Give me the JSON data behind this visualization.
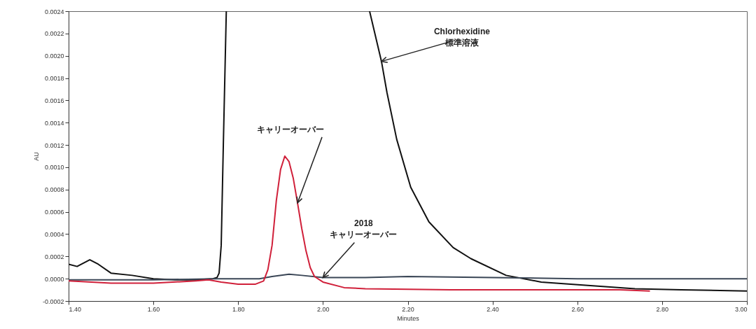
{
  "chart_data": {
    "type": "line",
    "xlabel": "Minutes",
    "ylabel": "AU",
    "xlim": [
      1.4,
      3.0
    ],
    "ylim": [
      -0.0002,
      0.0024
    ],
    "xticks": [
      {
        "value": 1.4,
        "label": "1.40"
      },
      {
        "value": 1.6,
        "label": "1.60"
      },
      {
        "value": 1.8,
        "label": "1.80"
      },
      {
        "value": 2.0,
        "label": "2.00"
      },
      {
        "value": 2.2,
        "label": "2.20"
      },
      {
        "value": 2.4,
        "label": "2.40"
      },
      {
        "value": 2.6,
        "label": "2.60"
      },
      {
        "value": 2.8,
        "label": "2.80"
      },
      {
        "value": 3.0,
        "label": "3.00"
      }
    ],
    "yticks": [
      {
        "value": -0.0002,
        "label": "-0.0002"
      },
      {
        "value": 0,
        "label": "0.0000"
      },
      {
        "value": 0.0002,
        "label": "0.0002"
      },
      {
        "value": 0.0004,
        "label": "0.0004"
      },
      {
        "value": 0.0006,
        "label": "0.0006"
      },
      {
        "value": 0.0008,
        "label": "0.0008"
      },
      {
        "value": 0.001,
        "label": "0.0010"
      },
      {
        "value": 0.0012,
        "label": "0.0012"
      },
      {
        "value": 0.0014,
        "label": "0.0014"
      },
      {
        "value": 0.0016,
        "label": "0.0016"
      },
      {
        "value": 0.0018,
        "label": "0.0018"
      },
      {
        "value": 0.002,
        "label": "0.0020"
      },
      {
        "value": 0.0022,
        "label": "0.0022"
      },
      {
        "value": 0.0024,
        "label": "0.0024"
      }
    ],
    "grid": false,
    "marker": "none",
    "line_style": "solid",
    "series": [
      {
        "color": "#111111",
        "x": [
          1.4,
          1.42,
          1.45,
          1.47,
          1.5,
          1.55,
          1.6,
          1.65,
          1.7,
          1.74,
          1.75,
          1.755,
          1.76,
          1.765,
          1.772,
          1.9,
          2.11,
          2.138,
          2.151,
          2.174,
          2.207,
          2.25,
          2.307,
          2.349,
          2.432,
          2.515,
          2.625,
          2.736,
          2.845,
          3.0
        ],
        "values": [
          0.00013,
          0.00011,
          0.00017,
          0.00013,
          5e-05,
          3e-05,
          0.0,
          -1e-05,
          -1e-05,
          0.0,
          1e-05,
          5e-05,
          0.0003,
          0.0012,
          0.0024,
          null,
          0.0024,
          0.00195,
          0.00167,
          0.00125,
          0.00082,
          0.00051,
          0.00028,
          0.00018,
          3e-05,
          -3e-05,
          -6e-05,
          -9e-05,
          -0.0001,
          -0.00011
        ]
      },
      {
        "color": "#3a4656",
        "x": [
          1.4,
          1.6,
          1.75,
          1.85,
          1.88,
          1.92,
          1.95,
          2.0,
          2.1,
          2.2,
          2.4,
          2.6,
          2.8,
          3.0
        ],
        "values": [
          -1e-05,
          -1e-05,
          0.0,
          0.0,
          2e-05,
          4e-05,
          3e-05,
          1e-05,
          1e-05,
          2e-05,
          1e-05,
          0.0,
          0.0,
          0.0
        ]
      },
      {
        "color": "#d0203a",
        "x": [
          1.4,
          1.5,
          1.6,
          1.7,
          1.73,
          1.76,
          1.8,
          1.84,
          1.86,
          1.87,
          1.88,
          1.89,
          1.9,
          1.91,
          1.92,
          1.93,
          1.94,
          1.95,
          1.96,
          1.97,
          1.98,
          2.0,
          2.05,
          2.1,
          2.3,
          2.5,
          2.7,
          2.77
        ],
        "values": [
          -2e-05,
          -4e-05,
          -4e-05,
          -2e-05,
          -1e-05,
          -3e-05,
          -5e-05,
          -5e-05,
          -2e-05,
          8e-05,
          0.0003,
          0.0007,
          0.00098,
          0.0011,
          0.00105,
          0.0009,
          0.00068,
          0.00045,
          0.00025,
          0.0001,
          2e-05,
          -3e-05,
          -8e-05,
          -9e-05,
          -0.0001,
          -0.0001,
          -0.0001,
          -0.00011
        ]
      }
    ],
    "annotations": [
      {
        "text": "Chlorhexidine\n標準溶液",
        "x": 2.138,
        "y": 0.00195
      },
      {
        "text": "キャリーオーバー",
        "x": 1.94,
        "y": 0.00068
      },
      {
        "text": "2018\nキャリーオーバー",
        "x": 2.0,
        "y": 1e-05
      }
    ]
  }
}
